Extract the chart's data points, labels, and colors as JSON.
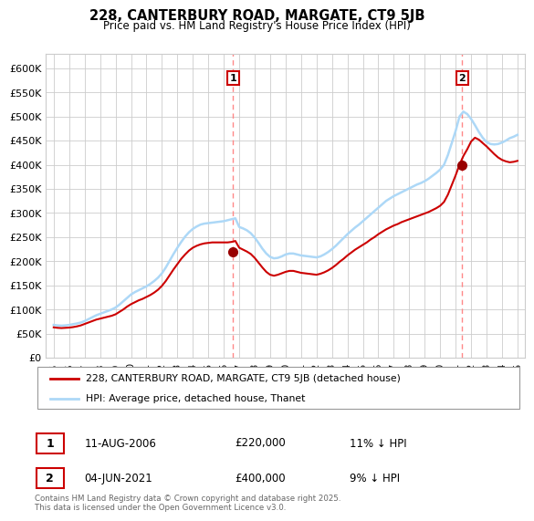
{
  "title": "228, CANTERBURY ROAD, MARGATE, CT9 5JB",
  "subtitle": "Price paid vs. HM Land Registry's House Price Index (HPI)",
  "hpi_color": "#add8f7",
  "price_color": "#cc0000",
  "marker_color": "#990000",
  "vline_color": "#ff8888",
  "background": "#ffffff",
  "grid_color": "#cccccc",
  "ylim": [
    0,
    630000
  ],
  "yticks": [
    0,
    50000,
    100000,
    150000,
    200000,
    250000,
    300000,
    350000,
    400000,
    450000,
    500000,
    550000,
    600000
  ],
  "ytick_labels": [
    "£0",
    "£50K",
    "£100K",
    "£150K",
    "£200K",
    "£250K",
    "£300K",
    "£350K",
    "£400K",
    "£450K",
    "£500K",
    "£550K",
    "£600K"
  ],
  "xlim_start": 1994.5,
  "xlim_end": 2025.5,
  "sale1_year": 2006.61,
  "sale1_price": 220000,
  "sale1_label": "1",
  "sale1_date": "11-AUG-2006",
  "sale1_price_str": "£220,000",
  "sale1_hpi": "11% ↓ HPI",
  "sale2_year": 2021.42,
  "sale2_price": 400000,
  "sale2_label": "2",
  "sale2_date": "04-JUN-2021",
  "sale2_price_str": "£400,000",
  "sale2_hpi": "9% ↓ HPI",
  "legend1": "228, CANTERBURY ROAD, MARGATE, CT9 5JB (detached house)",
  "legend2": "HPI: Average price, detached house, Thanet",
  "footer": "Contains HM Land Registry data © Crown copyright and database right 2025.\nThis data is licensed under the Open Government Licence v3.0.",
  "hpi_years": [
    1995.0,
    1995.25,
    1995.5,
    1995.75,
    1996.0,
    1996.25,
    1996.5,
    1996.75,
    1997.0,
    1997.25,
    1997.5,
    1997.75,
    1998.0,
    1998.25,
    1998.5,
    1998.75,
    1999.0,
    1999.25,
    1999.5,
    1999.75,
    2000.0,
    2000.25,
    2000.5,
    2000.75,
    2001.0,
    2001.25,
    2001.5,
    2001.75,
    2002.0,
    2002.25,
    2002.5,
    2002.75,
    2003.0,
    2003.25,
    2003.5,
    2003.75,
    2004.0,
    2004.25,
    2004.5,
    2004.75,
    2005.0,
    2005.25,
    2005.5,
    2005.75,
    2006.0,
    2006.25,
    2006.5,
    2006.75,
    2007.0,
    2007.25,
    2007.5,
    2007.75,
    2008.0,
    2008.25,
    2008.5,
    2008.75,
    2009.0,
    2009.25,
    2009.5,
    2009.75,
    2010.0,
    2010.25,
    2010.5,
    2010.75,
    2011.0,
    2011.25,
    2011.5,
    2011.75,
    2012.0,
    2012.25,
    2012.5,
    2012.75,
    2013.0,
    2013.25,
    2013.5,
    2013.75,
    2014.0,
    2014.25,
    2014.5,
    2014.75,
    2015.0,
    2015.25,
    2015.5,
    2015.75,
    2016.0,
    2016.25,
    2016.5,
    2016.75,
    2017.0,
    2017.25,
    2017.5,
    2017.75,
    2018.0,
    2018.25,
    2018.5,
    2018.75,
    2019.0,
    2019.25,
    2019.5,
    2019.75,
    2020.0,
    2020.25,
    2020.5,
    2020.75,
    2021.0,
    2021.25,
    2021.5,
    2021.75,
    2022.0,
    2022.25,
    2022.5,
    2022.75,
    2023.0,
    2023.25,
    2023.5,
    2023.75,
    2024.0,
    2024.25,
    2024.5,
    2024.75,
    2025.0
  ],
  "hpi_values": [
    68000,
    67000,
    66500,
    67000,
    68000,
    69500,
    71000,
    73000,
    76000,
    80000,
    84000,
    88000,
    91000,
    94000,
    97000,
    100000,
    104000,
    110000,
    117000,
    124000,
    131000,
    136000,
    140000,
    144000,
    148000,
    153000,
    159000,
    166000,
    175000,
    187000,
    201000,
    215000,
    228000,
    240000,
    251000,
    260000,
    267000,
    272000,
    276000,
    278000,
    279000,
    280000,
    281000,
    282000,
    283000,
    285000,
    287000,
    289000,
    271000,
    268000,
    264000,
    258000,
    249000,
    238000,
    226000,
    216000,
    209000,
    206000,
    207000,
    210000,
    214000,
    216000,
    216000,
    214000,
    212000,
    211000,
    210000,
    209000,
    208000,
    210000,
    214000,
    219000,
    225000,
    232000,
    240000,
    248000,
    256000,
    263000,
    270000,
    276000,
    283000,
    290000,
    297000,
    304000,
    311000,
    318000,
    325000,
    330000,
    335000,
    339000,
    343000,
    347000,
    351000,
    355000,
    359000,
    362000,
    366000,
    371000,
    377000,
    383000,
    390000,
    400000,
    420000,
    445000,
    470000,
    500000,
    510000,
    505000,
    495000,
    482000,
    468000,
    456000,
    447000,
    443000,
    442000,
    443000,
    446000,
    450000,
    455000,
    458000,
    462000
  ],
  "red_years": [
    1995.0,
    1995.25,
    1995.5,
    1995.75,
    1996.0,
    1996.25,
    1996.5,
    1996.75,
    1997.0,
    1997.25,
    1997.5,
    1997.75,
    1998.0,
    1998.25,
    1998.5,
    1998.75,
    1999.0,
    1999.25,
    1999.5,
    1999.75,
    2000.0,
    2000.25,
    2000.5,
    2000.75,
    2001.0,
    2001.25,
    2001.5,
    2001.75,
    2002.0,
    2002.25,
    2002.5,
    2002.75,
    2003.0,
    2003.25,
    2003.5,
    2003.75,
    2004.0,
    2004.25,
    2004.5,
    2004.75,
    2005.0,
    2005.25,
    2005.5,
    2005.75,
    2006.0,
    2006.25,
    2006.5,
    2006.75,
    2007.0,
    2007.25,
    2007.5,
    2007.75,
    2008.0,
    2008.25,
    2008.5,
    2008.75,
    2009.0,
    2009.25,
    2009.5,
    2009.75,
    2010.0,
    2010.25,
    2010.5,
    2010.75,
    2011.0,
    2011.25,
    2011.5,
    2011.75,
    2012.0,
    2012.25,
    2012.5,
    2012.75,
    2013.0,
    2013.25,
    2013.5,
    2013.75,
    2014.0,
    2014.25,
    2014.5,
    2014.75,
    2015.0,
    2015.25,
    2015.5,
    2015.75,
    2016.0,
    2016.25,
    2016.5,
    2016.75,
    2017.0,
    2017.25,
    2017.5,
    2017.75,
    2018.0,
    2018.25,
    2018.5,
    2018.75,
    2019.0,
    2019.25,
    2019.5,
    2019.75,
    2020.0,
    2020.25,
    2020.5,
    2020.75,
    2021.0,
    2021.25,
    2021.5,
    2021.75,
    2022.0,
    2022.25,
    2022.5,
    2022.75,
    2023.0,
    2023.25,
    2023.5,
    2023.75,
    2024.0,
    2024.25,
    2024.5,
    2024.75,
    2025.0
  ],
  "red_values": [
    63000,
    62000,
    61500,
    62000,
    62500,
    63500,
    65000,
    67000,
    70000,
    73000,
    76000,
    79000,
    81000,
    83000,
    85000,
    87000,
    90000,
    95000,
    100000,
    106000,
    111000,
    115000,
    119000,
    122000,
    126000,
    130000,
    135000,
    141000,
    149000,
    159000,
    171000,
    183000,
    194000,
    205000,
    214000,
    222000,
    228000,
    232000,
    235000,
    237000,
    238000,
    239000,
    239000,
    239000,
    239000,
    239000,
    240000,
    242000,
    228000,
    224000,
    220000,
    215000,
    207000,
    197000,
    187000,
    178000,
    172000,
    170000,
    172000,
    175000,
    178000,
    180000,
    180000,
    178000,
    176000,
    175000,
    174000,
    173000,
    172000,
    174000,
    177000,
    181000,
    186000,
    192000,
    199000,
    205000,
    212000,
    218000,
    224000,
    229000,
    234000,
    239000,
    245000,
    250000,
    256000,
    261000,
    266000,
    270000,
    274000,
    277000,
    281000,
    284000,
    287000,
    290000,
    293000,
    296000,
    299000,
    302000,
    306000,
    310000,
    315000,
    323000,
    338000,
    358000,
    378000,
    400000,
    418000,
    432000,
    448000,
    456000,
    452000,
    445000,
    438000,
    430000,
    422000,
    415000,
    410000,
    407000,
    405000,
    406000,
    408000
  ]
}
